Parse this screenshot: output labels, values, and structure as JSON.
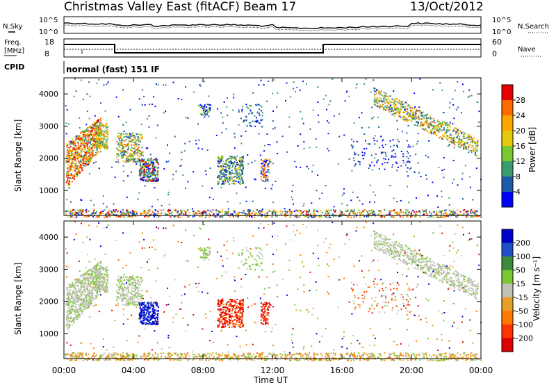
{
  "header": {
    "title": "Christmas Valley East (fitACF)",
    "beam": "Beam 17",
    "date": "13/Oct/2012"
  },
  "panels": {
    "noise": {
      "left_label": "N.Sky",
      "right_label": "N.Search",
      "left_ticks": [
        "10^5",
        "10^0"
      ],
      "right_ticks": [
        "10^5",
        "10^0"
      ]
    },
    "freq": {
      "left_label_1": "Freq.",
      "left_label_2": "[MHz]",
      "left_ticks": [
        "18",
        "8"
      ],
      "right_label": "Nave",
      "right_ticks": [
        "60",
        "0"
      ]
    },
    "cpid": {
      "label": "CPID",
      "value": "normal (fast) 151 IF"
    }
  },
  "chart_data": [
    {
      "type": "heatmap",
      "name": "power",
      "ylabel": "Slant Range [km]",
      "yticks": [
        "1000",
        "2000",
        "3000",
        "4000"
      ],
      "ylim": [
        180,
        4500
      ],
      "colorbar": {
        "label": "Power [dB]",
        "ticks": [
          "28",
          "24",
          "20",
          "16",
          "12",
          "8",
          "4"
        ],
        "colors": [
          "#e60000",
          "#ff6a00",
          "#ffa500",
          "#e6c80a",
          "#78c832",
          "#3c9b6e",
          "#1e5aaa",
          "#0000ff"
        ]
      },
      "xticks": [
        "00:00",
        "04:00",
        "08:00",
        "12:00",
        "16:00",
        "20:00",
        "00:00"
      ],
      "xlim": [
        0,
        24
      ]
    },
    {
      "type": "heatmap",
      "name": "velocity",
      "ylabel": "Slant Range [km]",
      "yticks": [
        "1000",
        "2000",
        "3000",
        "4000"
      ],
      "ylim": [
        180,
        4500
      ],
      "colorbar": {
        "label": "Velocity [m s⁻¹]",
        "ticks": [
          "200",
          "100",
          "50",
          "15",
          "-15",
          "-50",
          "-100",
          "-200"
        ],
        "colors": [
          "#0000cc",
          "#1e50c8",
          "#3c8c3c",
          "#78c832",
          "#c0c0b4",
          "#e6a028",
          "#ff7800",
          "#ff3200",
          "#dc0000"
        ]
      },
      "xticks": [
        "00:00",
        "04:00",
        "08:00",
        "12:00",
        "16:00",
        "20:00",
        "00:00"
      ],
      "xlim": [
        0,
        24
      ],
      "xlabel": "Time UT"
    }
  ]
}
